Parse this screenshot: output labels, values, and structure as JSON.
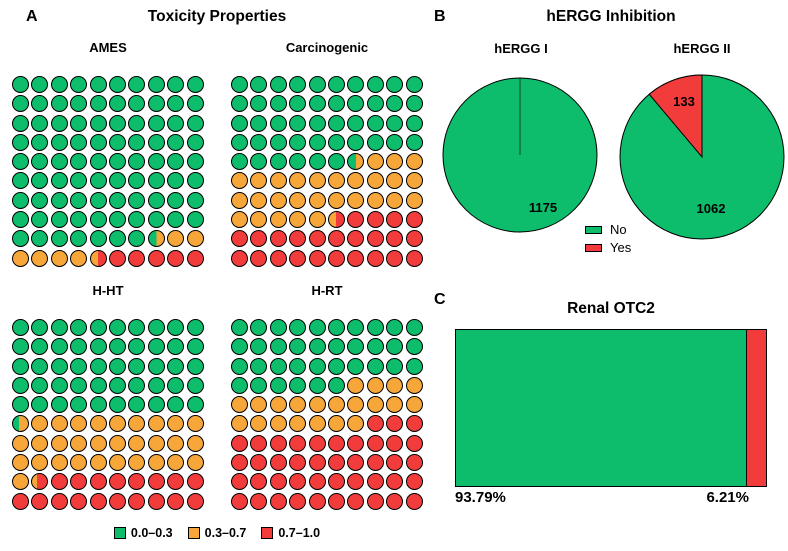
{
  "colors": {
    "green": "#0dbd6b",
    "orange": "#f7a73a",
    "red": "#f23c3c",
    "outline": "#000000"
  },
  "panel_a": {
    "label": "A",
    "title": "Toxicity Properties",
    "legend": [
      {
        "label": "0.0–0.3",
        "color": "#0dbd6b"
      },
      {
        "label": "0.3–0.7",
        "color": "#f7a73a"
      },
      {
        "label": "0.7–1.0",
        "color": "#f23c3c"
      }
    ]
  },
  "panel_b": {
    "label": "B",
    "title": "hERGG Inhibition",
    "pie1_value": "1175",
    "pie2_slice_value": "133",
    "pie2_value": "1062",
    "legend": [
      {
        "label": "No",
        "color": "#0dbd6b"
      },
      {
        "label": "Yes",
        "color": "#f23c3c"
      }
    ]
  },
  "panel_c": {
    "label": "C",
    "title": "Renal OTC2",
    "left_pct_label": "93.79%",
    "right_pct_label": "6.21%"
  },
  "chart_data": [
    {
      "type": "waffle",
      "title": "AMES",
      "grid": [
        10,
        10
      ],
      "categories": [
        "0.0–0.3",
        "0.3–0.7",
        "0.7–1.0"
      ],
      "percent": [
        87.5,
        7.0,
        5.5
      ],
      "splits": {
        "go": 0.5,
        "or": 0.45
      },
      "rows": [
        "gggggggggg",
        "gggggggggg",
        "gggggggggg",
        "gggggggggg",
        "gggggggggg",
        "gggggggggg",
        "gggggggggg",
        "gggggggggg",
        "ggggggg1oo",
        "oooo2rrrrr"
      ]
    },
    {
      "type": "waffle",
      "title": "Carcinogenic",
      "grid": [
        10,
        10
      ],
      "categories": [
        "0.0–0.3",
        "0.3–0.7",
        "0.7–1.0"
      ],
      "percent": [
        46.5,
        29.0,
        24.5
      ],
      "splits": {
        "go": 0.55,
        "or": 0.45
      },
      "rows": [
        "gggggggggg",
        "gggggggggg",
        "gggggggggg",
        "gggggggggg",
        "gggggg1ooo",
        "oooooooooo",
        "oooooooooo",
        "ooooo2rrrr",
        "rrrrrrrrrr",
        "rrrrrrrrrr"
      ]
    },
    {
      "type": "waffle",
      "title": "H-HT",
      "grid": [
        10,
        10
      ],
      "categories": [
        "0.0–0.3",
        "0.3–0.7",
        "0.7–1.0"
      ],
      "percent": [
        50.4,
        31.0,
        18.6
      ],
      "splits": {
        "go": 0.4,
        "or": 0.35
      },
      "rows": [
        "gggggggggg",
        "gggggggggg",
        "gggggggggg",
        "gggggggggg",
        "gggggggggg",
        "1ooooooooo",
        "oooooooooo",
        "oooooooooo",
        "o2rrrrrrrr",
        "rrrrrrrrrr"
      ]
    },
    {
      "type": "waffle",
      "title": "H-RT",
      "grid": [
        10,
        10
      ],
      "categories": [
        "0.0–0.3",
        "0.3–0.7",
        "0.7–1.0"
      ],
      "percent": [
        36.0,
        21.0,
        43.0
      ],
      "splits": {
        "go": 0.5,
        "or": 0.5
      },
      "rows": [
        "gggggggggg",
        "gggggggggg",
        "gggggggggg",
        "ggggggoooo",
        "oooooooooo",
        "ooooooorrr",
        "rrrrrrrrrr",
        "rrrrrrrrrr",
        "rrrrrrrrrr",
        "rrrrrrrrrr"
      ]
    },
    {
      "type": "pie",
      "title": "hERGG I",
      "labels": [
        "No",
        "Yes"
      ],
      "values": [
        1175,
        0
      ]
    },
    {
      "type": "pie",
      "title": "hERGG II",
      "labels": [
        "No",
        "Yes"
      ],
      "values": [
        1062,
        133
      ]
    },
    {
      "type": "bar",
      "title": "Renal OTC2",
      "orientation": "horizontal-stacked",
      "labels": [
        "No",
        "Yes"
      ],
      "values_percent": [
        93.79,
        6.21
      ]
    }
  ]
}
